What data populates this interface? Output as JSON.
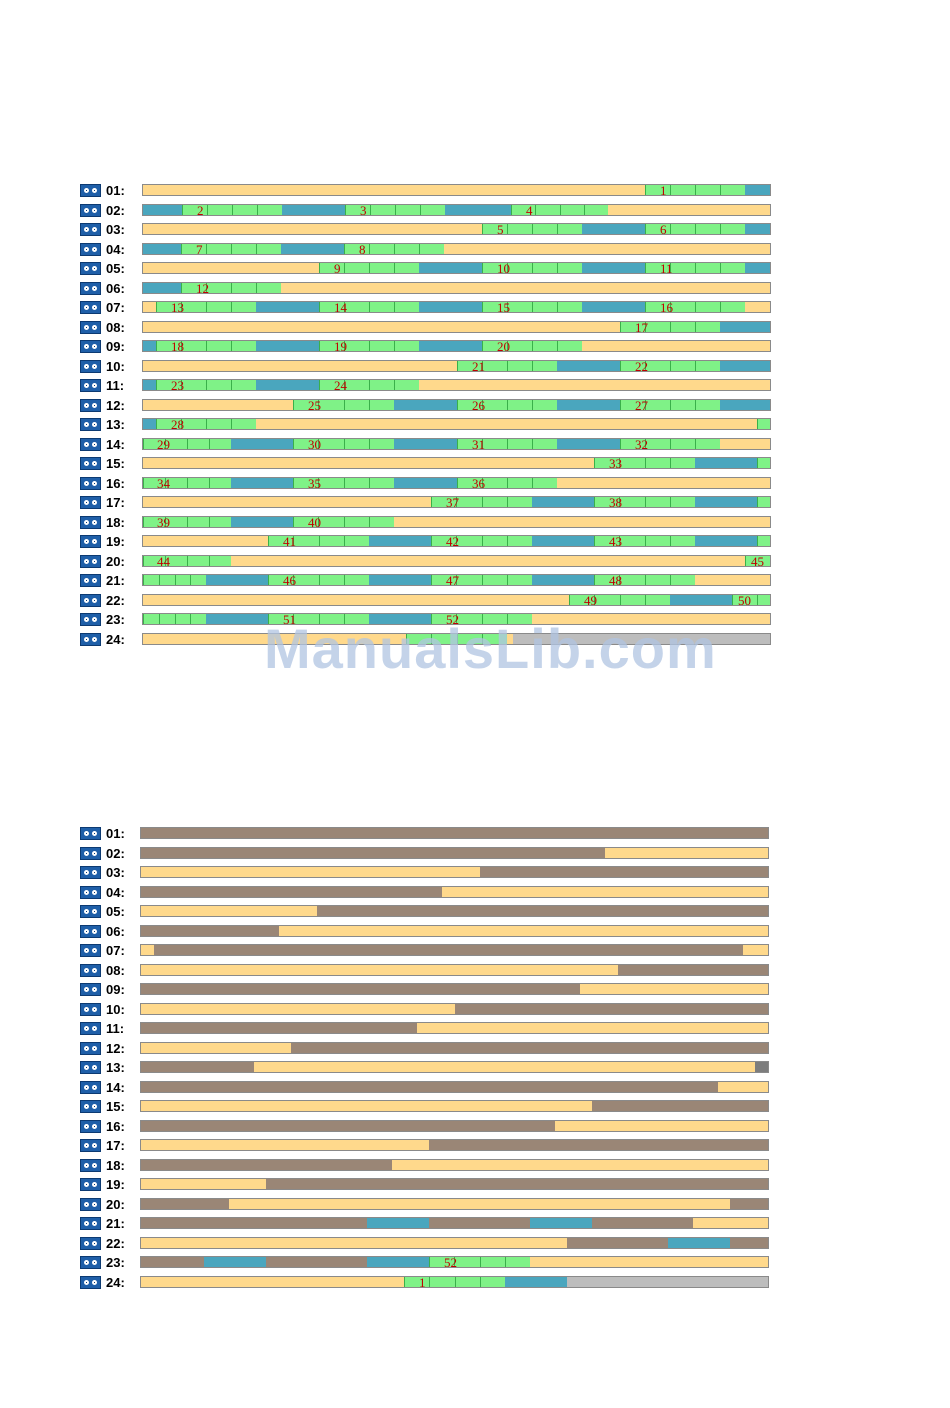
{
  "watermark": "ManualsLib.com",
  "colors": {
    "recording_green": "#7ff287",
    "idle_yellow": "#ffd98c",
    "blue": "#4aa6be",
    "taupe": "#9a8676",
    "empty_gray": "#bdbdbd",
    "marker_red": "#c00000"
  },
  "icons": {
    "channel": "camera-icon"
  },
  "timeline_top": {
    "rows": [
      {
        "label": "01:",
        "segs": [
          [
            "Y",
            0.8
          ],
          [
            "G",
            0.16,
            "1"
          ],
          [
            "B",
            0.04
          ]
        ]
      },
      {
        "label": "02:",
        "segs": [
          [
            "B",
            0.062
          ],
          [
            "G",
            0.16,
            "2"
          ],
          [
            "B",
            0.1
          ],
          [
            "G",
            0.16,
            "3"
          ],
          [
            "B",
            0.105
          ],
          [
            "G",
            0.155,
            "4"
          ],
          [
            "Y",
            0.258
          ]
        ]
      },
      {
        "label": "03:",
        "segs": [
          [
            "Y",
            0.54
          ],
          [
            "G",
            0.16,
            "5"
          ],
          [
            "B",
            0.1
          ],
          [
            "G",
            0.16,
            "6"
          ],
          [
            "B",
            0.04
          ]
        ]
      },
      {
        "label": "04:",
        "segs": [
          [
            "B",
            0.06
          ],
          [
            "G",
            0.16,
            "7"
          ],
          [
            "B",
            0.1
          ],
          [
            "G",
            0.16,
            "8"
          ],
          [
            "Y",
            0.52
          ]
        ]
      },
      {
        "label": "05:",
        "segs": [
          [
            "Y",
            0.28
          ],
          [
            "G",
            0.16,
            "9"
          ],
          [
            "B",
            0.1
          ],
          [
            "G",
            0.16,
            "10"
          ],
          [
            "B",
            0.1
          ],
          [
            "G",
            0.16,
            "11"
          ],
          [
            "B",
            0.04
          ]
        ]
      },
      {
        "label": "06:",
        "segs": [
          [
            "B",
            0.06
          ],
          [
            "G",
            0.16,
            "12"
          ],
          [
            "Y",
            0.78
          ]
        ]
      },
      {
        "label": "07:",
        "segs": [
          [
            "Y",
            0.02
          ],
          [
            "G",
            0.16,
            "13"
          ],
          [
            "B",
            0.1
          ],
          [
            "G",
            0.16,
            "14"
          ],
          [
            "B",
            0.1
          ],
          [
            "G",
            0.16,
            "15"
          ],
          [
            "B",
            0.1
          ],
          [
            "G",
            0.16,
            "16"
          ],
          [
            "Y",
            0.04
          ]
        ]
      },
      {
        "label": "08:",
        "segs": [
          [
            "Y",
            0.76
          ],
          [
            "G",
            0.16,
            "17"
          ],
          [
            "B",
            0.08
          ]
        ]
      },
      {
        "label": "09:",
        "segs": [
          [
            "B",
            0.02
          ],
          [
            "G",
            0.16,
            "18"
          ],
          [
            "B",
            0.1
          ],
          [
            "G",
            0.16,
            "19"
          ],
          [
            "B",
            0.1
          ],
          [
            "G",
            0.16,
            "20"
          ],
          [
            "Y",
            0.3
          ]
        ]
      },
      {
        "label": "10:",
        "segs": [
          [
            "Y",
            0.5
          ],
          [
            "G",
            0.16,
            "21"
          ],
          [
            "B",
            0.1
          ],
          [
            "G",
            0.16,
            "22"
          ],
          [
            "B",
            0.08
          ]
        ]
      },
      {
        "label": "11:",
        "segs": [
          [
            "B",
            0.02
          ],
          [
            "G",
            0.16,
            "23"
          ],
          [
            "B",
            0.1
          ],
          [
            "G",
            0.16,
            "24"
          ],
          [
            "Y",
            0.56
          ]
        ]
      },
      {
        "label": "12:",
        "segs": [
          [
            "Y",
            0.24
          ],
          [
            "G",
            0.16,
            "25"
          ],
          [
            "B",
            0.1
          ],
          [
            "G",
            0.16,
            "26"
          ],
          [
            "B",
            0.1
          ],
          [
            "G",
            0.16,
            "27"
          ],
          [
            "B",
            0.08
          ]
        ]
      },
      {
        "label": "13:",
        "segs": [
          [
            "B",
            0.02
          ],
          [
            "G",
            0.16,
            "28"
          ],
          [
            "Y",
            0.8
          ],
          [
            "G",
            0.02
          ]
        ]
      },
      {
        "label": "14:",
        "segs": [
          [
            "G",
            0.14,
            "29"
          ],
          [
            "B",
            0.1
          ],
          [
            "G",
            0.16,
            "30"
          ],
          [
            "B",
            0.1
          ],
          [
            "G",
            0.16,
            "31"
          ],
          [
            "B",
            0.1
          ],
          [
            "G",
            0.16,
            "32"
          ],
          [
            "Y",
            0.08
          ]
        ]
      },
      {
        "label": "15:",
        "segs": [
          [
            "Y",
            0.72
          ],
          [
            "G",
            0.16,
            "33"
          ],
          [
            "B",
            0.1
          ],
          [
            "G",
            0.02
          ]
        ]
      },
      {
        "label": "16:",
        "segs": [
          [
            "G",
            0.14,
            "34"
          ],
          [
            "B",
            0.1
          ],
          [
            "G",
            0.16,
            "35"
          ],
          [
            "B",
            0.1
          ],
          [
            "G",
            0.16,
            "36"
          ],
          [
            "Y",
            0.34
          ]
        ]
      },
      {
        "label": "17:",
        "segs": [
          [
            "Y",
            0.46
          ],
          [
            "G",
            0.16,
            "37"
          ],
          [
            "B",
            0.1
          ],
          [
            "G",
            0.16,
            "38"
          ],
          [
            "B",
            0.1
          ],
          [
            "G",
            0.02
          ]
        ]
      },
      {
        "label": "18:",
        "segs": [
          [
            "G",
            0.14,
            "39"
          ],
          [
            "B",
            0.1
          ],
          [
            "G",
            0.16,
            "40"
          ],
          [
            "Y",
            0.6
          ]
        ]
      },
      {
        "label": "19:",
        "segs": [
          [
            "Y",
            0.2
          ],
          [
            "G",
            0.16,
            "41"
          ],
          [
            "B",
            0.1
          ],
          [
            "G",
            0.16,
            "42"
          ],
          [
            "B",
            0.1
          ],
          [
            "G",
            0.16,
            "43"
          ],
          [
            "B",
            0.1
          ],
          [
            "G",
            0.02
          ]
        ]
      },
      {
        "label": "20:",
        "segs": [
          [
            "G",
            0.14,
            "44"
          ],
          [
            "Y",
            0.82
          ],
          [
            "G",
            0.04,
            "45"
          ]
        ]
      },
      {
        "label": "21:",
        "segs": [
          [
            "G",
            0.1
          ],
          [
            "B",
            0.1
          ],
          [
            "G",
            0.16,
            "46"
          ],
          [
            "B",
            0.1
          ],
          [
            "G",
            0.16,
            "47"
          ],
          [
            "B",
            0.1
          ],
          [
            "G",
            0.16,
            "48"
          ],
          [
            "Y",
            0.12
          ]
        ]
      },
      {
        "label": "22:",
        "segs": [
          [
            "Y",
            0.68
          ],
          [
            "G",
            0.16,
            "49"
          ],
          [
            "B",
            0.1
          ],
          [
            "G",
            0.04,
            "50"
          ],
          [
            "G",
            0.02
          ]
        ]
      },
      {
        "label": "23:",
        "segs": [
          [
            "G",
            0.1
          ],
          [
            "B",
            0.1
          ],
          [
            "G",
            0.16,
            "51"
          ],
          [
            "B",
            0.1
          ],
          [
            "G",
            0.16,
            "52"
          ],
          [
            "Y",
            0.38
          ]
        ]
      },
      {
        "label": "24:",
        "segs": [
          [
            "Y",
            0.42
          ],
          [
            "G",
            0.16
          ],
          [
            "Y",
            0.01
          ],
          [
            "S",
            0.41
          ]
        ]
      }
    ]
  },
  "timeline_bottom": {
    "rows": [
      {
        "label": "01:",
        "segs": [
          [
            "T",
            1.0
          ]
        ]
      },
      {
        "label": "02:",
        "segs": [
          [
            "T",
            0.74
          ],
          [
            "Y",
            0.26
          ]
        ]
      },
      {
        "label": "03:",
        "segs": [
          [
            "Y",
            0.54
          ],
          [
            "T",
            0.46
          ]
        ]
      },
      {
        "label": "04:",
        "segs": [
          [
            "T",
            0.48
          ],
          [
            "Y",
            0.52
          ]
        ]
      },
      {
        "label": "05:",
        "segs": [
          [
            "Y",
            0.28
          ],
          [
            "T",
            0.72
          ]
        ]
      },
      {
        "label": "06:",
        "segs": [
          [
            "T",
            0.22
          ],
          [
            "Y",
            0.78
          ]
        ]
      },
      {
        "label": "07:",
        "segs": [
          [
            "Y",
            0.02
          ],
          [
            "T",
            0.94
          ],
          [
            "Y",
            0.04
          ]
        ]
      },
      {
        "label": "08:",
        "segs": [
          [
            "Y",
            0.76
          ],
          [
            "T",
            0.24
          ]
        ]
      },
      {
        "label": "09:",
        "segs": [
          [
            "T",
            0.7
          ],
          [
            "Y",
            0.3
          ]
        ]
      },
      {
        "label": "10:",
        "segs": [
          [
            "Y",
            0.5
          ],
          [
            "T",
            0.5
          ]
        ]
      },
      {
        "label": "11:",
        "segs": [
          [
            "T",
            0.44
          ],
          [
            "Y",
            0.56
          ]
        ]
      },
      {
        "label": "12:",
        "segs": [
          [
            "Y",
            0.24
          ],
          [
            "T",
            0.76
          ]
        ]
      },
      {
        "label": "13:",
        "segs": [
          [
            "T",
            0.18
          ],
          [
            "Y",
            0.8
          ],
          [
            "X",
            0.02
          ]
        ]
      },
      {
        "label": "14:",
        "segs": [
          [
            "T",
            0.92
          ],
          [
            "Y",
            0.08
          ]
        ]
      },
      {
        "label": "15:",
        "segs": [
          [
            "Y",
            0.72
          ],
          [
            "T",
            0.28
          ]
        ]
      },
      {
        "label": "16:",
        "segs": [
          [
            "T",
            0.66
          ],
          [
            "Y",
            0.34
          ]
        ]
      },
      {
        "label": "17:",
        "segs": [
          [
            "Y",
            0.46
          ],
          [
            "T",
            0.54
          ]
        ]
      },
      {
        "label": "18:",
        "segs": [
          [
            "T",
            0.4
          ],
          [
            "Y",
            0.6
          ]
        ]
      },
      {
        "label": "19:",
        "segs": [
          [
            "Y",
            0.2
          ],
          [
            "T",
            0.8
          ]
        ]
      },
      {
        "label": "20:",
        "segs": [
          [
            "T",
            0.14
          ],
          [
            "Y",
            0.8
          ],
          [
            "T",
            0.06
          ]
        ]
      },
      {
        "label": "21:",
        "segs": [
          [
            "T",
            0.36
          ],
          [
            "B",
            0.1
          ],
          [
            "T",
            0.16
          ],
          [
            "B",
            0.1
          ],
          [
            "T",
            0.16
          ],
          [
            "Y",
            0.12
          ]
        ]
      },
      {
        "label": "22:",
        "segs": [
          [
            "Y",
            0.68
          ],
          [
            "T",
            0.16
          ],
          [
            "B",
            0.1
          ],
          [
            "T",
            0.06
          ]
        ]
      },
      {
        "label": "23:",
        "segs": [
          [
            "T",
            0.1
          ],
          [
            "B",
            0.1
          ],
          [
            "T",
            0.16
          ],
          [
            "B",
            0.1
          ],
          [
            "G",
            0.16,
            "52"
          ],
          [
            "Y",
            0.38
          ]
        ]
      },
      {
        "label": "24:",
        "segs": [
          [
            "Y",
            0.42
          ],
          [
            "G",
            0.16,
            "1"
          ],
          [
            "B",
            0.1
          ],
          [
            "S",
            0.32
          ]
        ]
      }
    ]
  }
}
